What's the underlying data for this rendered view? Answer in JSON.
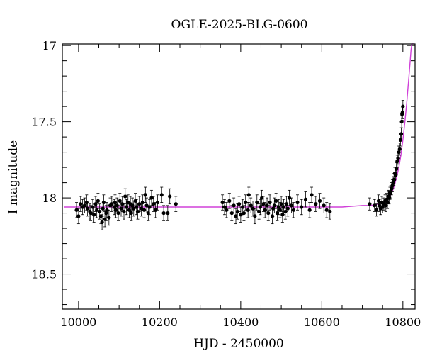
{
  "chart_data": {
    "type": "scatter",
    "title": "OGLE-2025-BLG-0600",
    "xlabel": "HJD - 2450000",
    "ylabel": "I magnitude",
    "xlim": [
      9960,
      10830
    ],
    "ylim": [
      18.73,
      16.99
    ],
    "y_inverted": true,
    "xticks": [
      10000,
      10200,
      10400,
      10600,
      10800
    ],
    "yticks": [
      17,
      17.5,
      18,
      18.5
    ],
    "x_minor_step": 50,
    "y_minor_step": 0.1,
    "grid": false,
    "legend": "none",
    "colors": {
      "data": "#000000",
      "model": "#d040d8"
    },
    "series": [
      {
        "kind": "points_with_errorbars",
        "x": [
          9995,
          10000,
          10005,
          10010,
          10015,
          10020,
          10022,
          10028,
          10030,
          10035,
          10038,
          10042,
          10045,
          10048,
          10052,
          10055,
          10058,
          10060,
          10062,
          10065,
          10068,
          10070,
          10075,
          10078,
          10082,
          10088,
          10090,
          10092,
          10095,
          10098,
          10102,
          10105,
          10108,
          10112,
          10115,
          10118,
          10122,
          10125,
          10128,
          10130,
          10133,
          10136,
          10140,
          10143,
          10146,
          10150,
          10155,
          10158,
          10162,
          10165,
          10168,
          10172,
          10175,
          10180,
          10185,
          10190,
          10195,
          10205,
          10210,
          10220,
          10225,
          10240,
          10355,
          10360,
          10365,
          10372,
          10378,
          10383,
          10388,
          10392,
          10396,
          10400,
          10405,
          10408,
          10412,
          10418,
          10420,
          10425,
          10430,
          10435,
          10440,
          10445,
          10448,
          10452,
          10456,
          10460,
          10465,
          10468,
          10472,
          10478,
          10480,
          10483,
          10487,
          10490,
          10494,
          10497,
          10500,
          10503,
          10506,
          10510,
          10513,
          10516,
          10520,
          10525,
          10530,
          10540,
          10550,
          10560,
          10570,
          10575,
          10585,
          10595,
          10605,
          10612,
          10620,
          10718,
          10730,
          10735,
          10740,
          10742,
          10745,
          10748,
          10750,
          10753,
          10756,
          10758,
          10760,
          10762,
          10764,
          10766,
          10768,
          10770,
          10772,
          10774,
          10776,
          10778,
          10780,
          10782,
          10784,
          10786,
          10788,
          10790,
          10792,
          10794,
          10796,
          10797,
          10798,
          10799,
          10800
        ],
        "y": [
          18.08,
          18.12,
          18.04,
          18.06,
          18.05,
          18.03,
          18.07,
          18.09,
          18.1,
          18.06,
          18.11,
          18.04,
          18.08,
          18.02,
          18.09,
          18.12,
          18.16,
          18.07,
          18.03,
          18.14,
          18.1,
          18.08,
          18.13,
          18.05,
          18.04,
          18.06,
          18.03,
          18.08,
          18.05,
          18.1,
          18.02,
          18.07,
          18.04,
          18.09,
          17.99,
          18.06,
          18.03,
          18.08,
          18.04,
          18.1,
          18.05,
          18.07,
          18.02,
          18.06,
          18.09,
          18.04,
          18.07,
          18.03,
          18.08,
          17.98,
          18.05,
          18.1,
          18.06,
          18.0,
          18.04,
          18.08,
          18.03,
          17.98,
          18.1,
          18.1,
          17.99,
          18.04,
          18.03,
          18.06,
          18.08,
          18.02,
          18.1,
          18.05,
          18.12,
          18.09,
          18.04,
          18.11,
          18.06,
          18.1,
          18.03,
          18.08,
          17.98,
          18.05,
          18.07,
          18.12,
          18.03,
          18.09,
          18.06,
          18.0,
          18.04,
          18.08,
          18.05,
          18.1,
          18.03,
          18.12,
          18.07,
          18.05,
          18.02,
          18.1,
          18.06,
          18.08,
          18.04,
          18.11,
          18.06,
          18.09,
          18.04,
          18.07,
          18.0,
          18.05,
          18.08,
          18.03,
          18.06,
          18.01,
          18.08,
          17.98,
          18.04,
          18.02,
          18.05,
          18.08,
          18.09,
          18.04,
          18.05,
          18.08,
          18.02,
          18.05,
          18.07,
          18.03,
          18.06,
          18.04,
          18.02,
          18.05,
          18.01,
          18.03,
          17.99,
          18.0,
          17.97,
          17.96,
          17.94,
          17.92,
          17.9,
          17.88,
          17.84,
          17.85,
          17.81,
          17.76,
          17.74,
          17.7,
          17.68,
          17.62,
          17.58,
          17.5,
          17.45,
          17.44,
          17.4
        ],
        "yerr": [
          0.05,
          0.05,
          0.05,
          0.05,
          0.05,
          0.05,
          0.05,
          0.05,
          0.05,
          0.05,
          0.05,
          0.05,
          0.05,
          0.05,
          0.05,
          0.05,
          0.05,
          0.05,
          0.05,
          0.05,
          0.05,
          0.05,
          0.05,
          0.05,
          0.05,
          0.05,
          0.05,
          0.05,
          0.05,
          0.05,
          0.05,
          0.05,
          0.05,
          0.05,
          0.05,
          0.05,
          0.05,
          0.05,
          0.05,
          0.05,
          0.05,
          0.05,
          0.05,
          0.05,
          0.05,
          0.05,
          0.05,
          0.05,
          0.05,
          0.05,
          0.05,
          0.05,
          0.05,
          0.05,
          0.05,
          0.05,
          0.05,
          0.05,
          0.05,
          0.05,
          0.05,
          0.05,
          0.05,
          0.05,
          0.05,
          0.05,
          0.05,
          0.05,
          0.05,
          0.05,
          0.05,
          0.05,
          0.05,
          0.05,
          0.05,
          0.05,
          0.05,
          0.05,
          0.05,
          0.05,
          0.05,
          0.05,
          0.05,
          0.05,
          0.05,
          0.05,
          0.05,
          0.05,
          0.05,
          0.05,
          0.05,
          0.05,
          0.05,
          0.05,
          0.05,
          0.05,
          0.05,
          0.05,
          0.05,
          0.05,
          0.05,
          0.05,
          0.05,
          0.05,
          0.05,
          0.05,
          0.05,
          0.05,
          0.05,
          0.05,
          0.05,
          0.05,
          0.05,
          0.05,
          0.05,
          0.04,
          0.04,
          0.04,
          0.04,
          0.04,
          0.04,
          0.04,
          0.04,
          0.04,
          0.04,
          0.04,
          0.04,
          0.04,
          0.04,
          0.04,
          0.04,
          0.04,
          0.04,
          0.04,
          0.04,
          0.04,
          0.04,
          0.04,
          0.04,
          0.04,
          0.04,
          0.04,
          0.04,
          0.04,
          0.04,
          0.04,
          0.04,
          0.04,
          0.04
        ]
      },
      {
        "kind": "model_line",
        "x": [
          9965,
          10100,
          10300,
          10500,
          10650,
          10700,
          10720,
          10740,
          10750,
          10760,
          10770,
          10775,
          10780,
          10785,
          10790,
          10795,
          10800,
          10805,
          10810,
          10815,
          10818,
          10820,
          10822,
          10824,
          10826
        ],
        "y": [
          18.06,
          18.06,
          18.06,
          18.06,
          18.06,
          18.05,
          18.05,
          18.04,
          18.03,
          18.02,
          17.98,
          17.95,
          17.91,
          17.86,
          17.8,
          17.72,
          17.62,
          17.5,
          17.36,
          17.2,
          17.1,
          17.03,
          16.99,
          16.99,
          16.99
        ]
      }
    ]
  }
}
